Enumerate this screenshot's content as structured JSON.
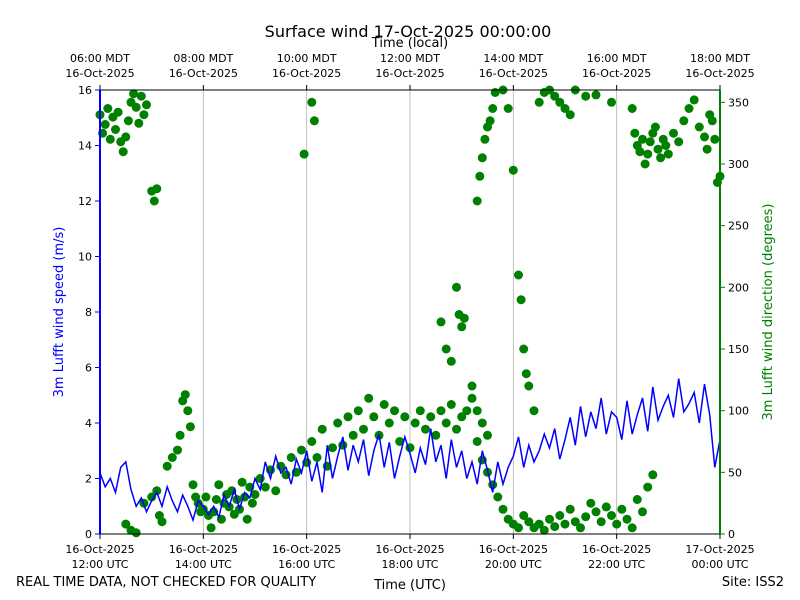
{
  "chart_data": {
    "type": "line+scatter",
    "title": "Surface wind 17-Oct-2025 00:00:00",
    "top_xlabel": "Time (local)",
    "xlabel": "Time (UTC)",
    "ylabel_left": "3m Lufft wind speed (m/s)",
    "ylabel_right": "3m Lufft wind direction (degrees)",
    "ylim_left": [
      0,
      16
    ],
    "ylim_right": [
      0,
      360
    ],
    "yticks_left": [
      0,
      2,
      4,
      6,
      8,
      10,
      12,
      14,
      16
    ],
    "yticks_right": [
      0,
      50,
      100,
      150,
      200,
      250,
      300,
      350
    ],
    "x_range_hours_utc": [
      12,
      24
    ],
    "bottom_ticks": [
      {
        "line1": "16-Oct-2025",
        "line2": "12:00 UTC"
      },
      {
        "line1": "16-Oct-2025",
        "line2": "14:00 UTC"
      },
      {
        "line1": "16-Oct-2025",
        "line2": "16:00 UTC"
      },
      {
        "line1": "16-Oct-2025",
        "line2": "18:00 UTC"
      },
      {
        "line1": "16-Oct-2025",
        "line2": "20:00 UTC"
      },
      {
        "line1": "16-Oct-2025",
        "line2": "22:00 UTC"
      },
      {
        "line1": "17-Oct-2025",
        "line2": "00:00 UTC"
      }
    ],
    "top_ticks": [
      {
        "line1": "06:00 MDT",
        "line2": "16-Oct-2025"
      },
      {
        "line1": "08:00 MDT",
        "line2": "16-Oct-2025"
      },
      {
        "line1": "10:00 MDT",
        "line2": "16-Oct-2025"
      },
      {
        "line1": "12:00 MDT",
        "line2": "16-Oct-2025"
      },
      {
        "line1": "14:00 MDT",
        "line2": "16-Oct-2025"
      },
      {
        "line1": "16:00 MDT",
        "line2": "16-Oct-2025"
      },
      {
        "line1": "18:00 MDT",
        "line2": "16-Oct-2025"
      }
    ],
    "series": [
      {
        "name": "wind speed",
        "axis": "left",
        "style": "line",
        "color": "#0000ff",
        "x_hours": [
          12.0,
          12.1,
          12.2,
          12.3,
          12.4,
          12.5,
          12.6,
          12.7,
          12.8,
          12.9,
          13.0,
          13.1,
          13.2,
          13.3,
          13.4,
          13.5,
          13.6,
          13.7,
          13.8,
          13.9,
          14.0,
          14.1,
          14.2,
          14.3,
          14.4,
          14.5,
          14.6,
          14.7,
          14.8,
          14.9,
          15.0,
          15.1,
          15.2,
          15.3,
          15.4,
          15.5,
          15.6,
          15.7,
          15.8,
          15.9,
          16.0,
          16.1,
          16.2,
          16.3,
          16.4,
          16.5,
          16.6,
          16.7,
          16.8,
          16.9,
          17.0,
          17.1,
          17.2,
          17.3,
          17.4,
          17.5,
          17.6,
          17.7,
          17.8,
          17.9,
          18.0,
          18.1,
          18.2,
          18.3,
          18.4,
          18.5,
          18.6,
          18.7,
          18.8,
          18.9,
          19.0,
          19.1,
          19.2,
          19.3,
          19.4,
          19.5,
          19.6,
          19.7,
          19.8,
          19.9,
          20.0,
          20.1,
          20.2,
          20.3,
          20.4,
          20.5,
          20.6,
          20.7,
          20.8,
          20.9,
          21.0,
          21.1,
          21.2,
          21.3,
          21.4,
          21.5,
          21.6,
          21.7,
          21.8,
          21.9,
          22.0,
          22.1,
          22.2,
          22.3,
          22.4,
          22.5,
          22.6,
          22.7,
          22.8,
          22.9,
          23.0,
          23.1,
          23.2,
          23.3,
          23.4,
          23.5,
          23.6,
          23.7,
          23.8,
          23.9,
          24.0
        ],
        "values": [
          2.2,
          1.7,
          2.0,
          1.5,
          2.4,
          2.6,
          1.6,
          1.0,
          1.3,
          0.8,
          1.2,
          1.5,
          1.0,
          1.7,
          1.2,
          0.8,
          1.4,
          1.0,
          0.5,
          1.2,
          1.0,
          0.7,
          1.0,
          0.6,
          1.4,
          1.0,
          1.6,
          0.9,
          1.5,
          1.3,
          2.0,
          1.6,
          2.6,
          2.0,
          2.8,
          2.2,
          2.4,
          1.8,
          2.7,
          2.2,
          3.0,
          1.9,
          2.6,
          1.5,
          3.2,
          2.0,
          2.8,
          3.5,
          2.3,
          3.2,
          2.6,
          3.4,
          2.1,
          3.0,
          3.6,
          2.4,
          3.3,
          2.0,
          2.8,
          3.5,
          2.9,
          2.2,
          3.1,
          2.5,
          3.8,
          2.6,
          3.2,
          2.0,
          3.4,
          2.4,
          3.0,
          2.0,
          2.6,
          1.8,
          3.0,
          2.3,
          1.5,
          2.6,
          1.8,
          2.4,
          2.8,
          3.5,
          2.4,
          3.2,
          2.6,
          3.0,
          3.6,
          3.1,
          3.8,
          2.7,
          3.4,
          4.2,
          3.2,
          4.6,
          3.5,
          4.4,
          3.8,
          4.9,
          3.6,
          4.4,
          4.2,
          3.4,
          4.8,
          3.6,
          4.3,
          4.9,
          3.7,
          5.3,
          4.1,
          4.6,
          5.0,
          4.2,
          5.6,
          4.4,
          4.7,
          5.1,
          4.0,
          5.4,
          4.3,
          2.4,
          3.4
        ]
      },
      {
        "name": "wind direction",
        "axis": "right",
        "style": "scatter",
        "color": "#008000",
        "points": [
          [
            12.0,
            340
          ],
          [
            12.05,
            325
          ],
          [
            12.1,
            332
          ],
          [
            12.15,
            345
          ],
          [
            12.2,
            320
          ],
          [
            12.25,
            338
          ],
          [
            12.3,
            328
          ],
          [
            12.35,
            342
          ],
          [
            12.4,
            318
          ],
          [
            12.45,
            310
          ],
          [
            12.5,
            322
          ],
          [
            12.55,
            335
          ],
          [
            12.6,
            350
          ],
          [
            12.65,
            357
          ],
          [
            12.7,
            346
          ],
          [
            12.75,
            333
          ],
          [
            12.8,
            355
          ],
          [
            12.85,
            340
          ],
          [
            12.9,
            348
          ],
          [
            13.0,
            278
          ],
          [
            13.05,
            270
          ],
          [
            13.1,
            280
          ],
          [
            12.5,
            8
          ],
          [
            12.6,
            3
          ],
          [
            12.7,
            1
          ],
          [
            12.85,
            25
          ],
          [
            13.0,
            30
          ],
          [
            13.1,
            35
          ],
          [
            13.15,
            15
          ],
          [
            13.2,
            10
          ],
          [
            13.3,
            55
          ],
          [
            13.4,
            62
          ],
          [
            13.5,
            68
          ],
          [
            13.55,
            80
          ],
          [
            13.6,
            108
          ],
          [
            13.65,
            113
          ],
          [
            13.7,
            100
          ],
          [
            13.75,
            87
          ],
          [
            13.8,
            40
          ],
          [
            13.85,
            30
          ],
          [
            13.9,
            25
          ],
          [
            13.95,
            18
          ],
          [
            14.0,
            20
          ],
          [
            14.05,
            30
          ],
          [
            14.1,
            15
          ],
          [
            14.15,
            5
          ],
          [
            14.2,
            18
          ],
          [
            14.25,
            28
          ],
          [
            14.3,
            40
          ],
          [
            14.35,
            12
          ],
          [
            14.4,
            25
          ],
          [
            14.45,
            32
          ],
          [
            14.5,
            22
          ],
          [
            14.55,
            35
          ],
          [
            14.6,
            16
          ],
          [
            14.65,
            28
          ],
          [
            14.7,
            20
          ],
          [
            14.75,
            42
          ],
          [
            14.8,
            30
          ],
          [
            14.85,
            12
          ],
          [
            14.9,
            38
          ],
          [
            14.95,
            25
          ],
          [
            15.0,
            32
          ],
          [
            15.1,
            45
          ],
          [
            15.2,
            38
          ],
          [
            15.3,
            52
          ],
          [
            15.4,
            35
          ],
          [
            15.5,
            55
          ],
          [
            15.6,
            48
          ],
          [
            15.7,
            62
          ],
          [
            15.8,
            50
          ],
          [
            15.9,
            68
          ],
          [
            16.0,
            58
          ],
          [
            16.1,
            75
          ],
          [
            16.2,
            62
          ],
          [
            16.3,
            85
          ],
          [
            16.4,
            55
          ],
          [
            16.5,
            70
          ],
          [
            16.6,
            90
          ],
          [
            16.7,
            72
          ],
          [
            16.8,
            95
          ],
          [
            16.9,
            80
          ],
          [
            17.0,
            100
          ],
          [
            17.1,
            85
          ],
          [
            17.2,
            110
          ],
          [
            17.3,
            95
          ],
          [
            17.4,
            80
          ],
          [
            17.5,
            105
          ],
          [
            17.6,
            90
          ],
          [
            17.7,
            100
          ],
          [
            17.8,
            75
          ],
          [
            17.9,
            95
          ],
          [
            18.0,
            70
          ],
          [
            18.1,
            90
          ],
          [
            18.2,
            100
          ],
          [
            18.3,
            85
          ],
          [
            18.4,
            95
          ],
          [
            18.5,
            80
          ],
          [
            18.6,
            100
          ],
          [
            18.7,
            90
          ],
          [
            18.8,
            105
          ],
          [
            18.9,
            85
          ],
          [
            19.0,
            95
          ],
          [
            19.1,
            100
          ],
          [
            19.2,
            110
          ],
          [
            19.3,
            75
          ],
          [
            19.4,
            60
          ],
          [
            19.5,
            50
          ],
          [
            19.6,
            40
          ],
          [
            19.7,
            30
          ],
          [
            19.8,
            20
          ],
          [
            19.9,
            12
          ],
          [
            20.0,
            8
          ],
          [
            20.1,
            5
          ],
          [
            20.2,
            15
          ],
          [
            20.3,
            10
          ],
          [
            20.4,
            5
          ],
          [
            20.5,
            8
          ],
          [
            20.6,
            3
          ],
          [
            20.7,
            12
          ],
          [
            20.8,
            6
          ],
          [
            20.9,
            15
          ],
          [
            21.0,
            8
          ],
          [
            21.1,
            20
          ],
          [
            21.2,
            10
          ],
          [
            21.3,
            5
          ],
          [
            21.4,
            14
          ],
          [
            21.5,
            25
          ],
          [
            21.6,
            18
          ],
          [
            21.7,
            10
          ],
          [
            21.8,
            22
          ],
          [
            21.9,
            15
          ],
          [
            22.0,
            8
          ],
          [
            22.1,
            20
          ],
          [
            22.2,
            12
          ],
          [
            22.3,
            5
          ],
          [
            22.4,
            28
          ],
          [
            22.5,
            18
          ],
          [
            22.6,
            38
          ],
          [
            22.7,
            48
          ],
          [
            16.1,
            350
          ],
          [
            16.15,
            335
          ],
          [
            15.95,
            308
          ],
          [
            18.9,
            200
          ],
          [
            18.95,
            178
          ],
          [
            19.0,
            168
          ],
          [
            19.05,
            175
          ],
          [
            18.6,
            172
          ],
          [
            18.7,
            150
          ],
          [
            18.8,
            140
          ],
          [
            19.2,
            120
          ],
          [
            19.3,
            100
          ],
          [
            19.4,
            90
          ],
          [
            19.5,
            80
          ],
          [
            19.3,
            270
          ],
          [
            19.35,
            290
          ],
          [
            19.4,
            305
          ],
          [
            19.45,
            320
          ],
          [
            19.5,
            330
          ],
          [
            19.55,
            335
          ],
          [
            19.6,
            345
          ],
          [
            19.65,
            358
          ],
          [
            19.8,
            360
          ],
          [
            19.9,
            345
          ],
          [
            20.0,
            295
          ],
          [
            20.1,
            210
          ],
          [
            20.15,
            190
          ],
          [
            20.2,
            150
          ],
          [
            20.25,
            130
          ],
          [
            20.3,
            120
          ],
          [
            20.4,
            100
          ],
          [
            20.5,
            350
          ],
          [
            20.6,
            358
          ],
          [
            20.7,
            360
          ],
          [
            20.8,
            355
          ],
          [
            20.9,
            350
          ],
          [
            21.0,
            345
          ],
          [
            21.1,
            340
          ],
          [
            21.2,
            360
          ],
          [
            21.4,
            355
          ],
          [
            21.6,
            356
          ],
          [
            21.9,
            350
          ],
          [
            22.3,
            345
          ],
          [
            22.35,
            325
          ],
          [
            22.4,
            315
          ],
          [
            22.45,
            310
          ],
          [
            22.5,
            320
          ],
          [
            22.55,
            300
          ],
          [
            22.6,
            308
          ],
          [
            22.65,
            318
          ],
          [
            22.7,
            325
          ],
          [
            22.75,
            330
          ],
          [
            22.8,
            312
          ],
          [
            22.85,
            305
          ],
          [
            22.9,
            320
          ],
          [
            22.95,
            315
          ],
          [
            23.0,
            308
          ],
          [
            23.1,
            325
          ],
          [
            23.2,
            318
          ],
          [
            23.3,
            335
          ],
          [
            23.4,
            345
          ],
          [
            23.5,
            352
          ],
          [
            23.6,
            330
          ],
          [
            23.7,
            322
          ],
          [
            23.75,
            312
          ],
          [
            23.8,
            340
          ],
          [
            23.85,
            335
          ],
          [
            23.9,
            320
          ],
          [
            23.95,
            285
          ],
          [
            24.0,
            290
          ]
        ]
      }
    ],
    "annotations": [
      "REAL TIME DATA, NOT CHECKED FOR QUALITY",
      "Site: ISS2"
    ]
  }
}
